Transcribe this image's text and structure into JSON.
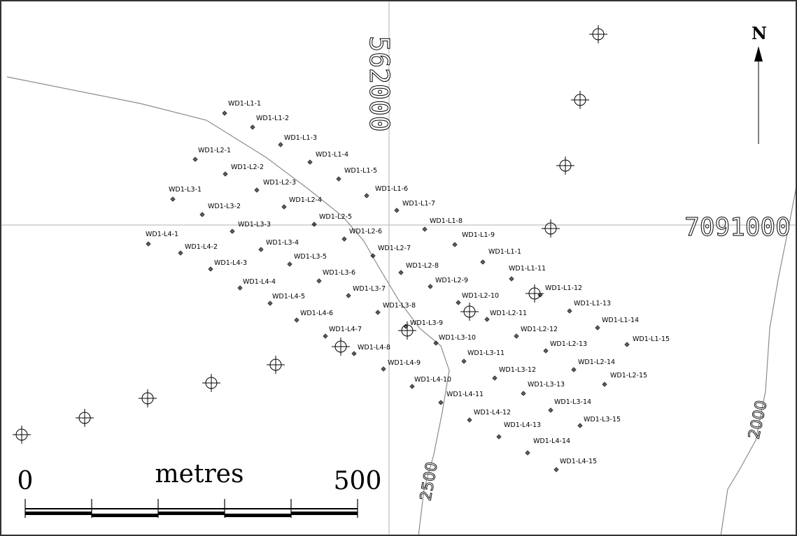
{
  "grid": {
    "easting_label": "562000",
    "northing_label": "7091000"
  },
  "contours": [
    {
      "label": "2500"
    },
    {
      "label": "2000"
    }
  ],
  "north_arrow": {
    "label": "N"
  },
  "scale_bar": {
    "start_label": "0",
    "unit_label": "metres",
    "end_label": "500"
  },
  "wells": [
    {
      "label": "WD1-L1-1"
    },
    {
      "label": "WD1-L1-2"
    },
    {
      "label": "WD1-L1-3"
    },
    {
      "label": "WD1-L1-4"
    },
    {
      "label": "WD1-L1-5"
    },
    {
      "label": "WD1-L1-6"
    },
    {
      "label": "WD1-L1-7"
    },
    {
      "label": "WD1-L1-8"
    },
    {
      "label": "WD1-L1-9"
    },
    {
      "label": "WD1-L1-1"
    },
    {
      "label": "WD1-L1-11"
    },
    {
      "label": "WD1-L1-12"
    },
    {
      "label": "WD1-L1-13"
    },
    {
      "label": "WD1-L1-14"
    },
    {
      "label": "WD1-L1-15"
    },
    {
      "label": "WD1-L2-1"
    },
    {
      "label": "WD1-L2-2"
    },
    {
      "label": "WD1-L2-3"
    },
    {
      "label": "WD1-L2-4"
    },
    {
      "label": "WD1-L2-5"
    },
    {
      "label": "WD1-L2-6"
    },
    {
      "label": "WD1-L2-7"
    },
    {
      "label": "WD1-L2-8"
    },
    {
      "label": "WD1-L2-9"
    },
    {
      "label": "WD1-L2-10"
    },
    {
      "label": "WD1-L2-11"
    },
    {
      "label": "WD1-L2-12"
    },
    {
      "label": "WD1-L2-13"
    },
    {
      "label": "WD1-L2-14"
    },
    {
      "label": "WD1-L2-15"
    },
    {
      "label": "WD1-L3-1"
    },
    {
      "label": "WD1-L3-2"
    },
    {
      "label": "WD1-L3-3"
    },
    {
      "label": "WD1-L3-4"
    },
    {
      "label": "WD1-L3-5"
    },
    {
      "label": "WD1-L3-6"
    },
    {
      "label": "WD1-L3-7"
    },
    {
      "label": "WD1-L3-8"
    },
    {
      "label": "WD1-L3-9"
    },
    {
      "label": "WD1-L3-10"
    },
    {
      "label": "WD1-L3-11"
    },
    {
      "label": "WD1-L3-12"
    },
    {
      "label": "WD1-L3-13"
    },
    {
      "label": "WD1-L3-14"
    },
    {
      "label": "WD1-L3-15"
    },
    {
      "label": "WD1-L4-1"
    },
    {
      "label": "WD1-L4-2"
    },
    {
      "label": "WD1-L4-3"
    },
    {
      "label": "WD1-L4-4"
    },
    {
      "label": "WD1-L4-5"
    },
    {
      "label": "WD1-L4-6"
    },
    {
      "label": "WD1-L4-7"
    },
    {
      "label": "WD1-L4-8"
    },
    {
      "label": "WD1-L4-9"
    },
    {
      "label": "WD1-L4-10"
    },
    {
      "label": "WD1-L4-11"
    },
    {
      "label": "WD1-L4-12"
    },
    {
      "label": "WD1-L4-13"
    },
    {
      "label": "WD1-L4-14"
    },
    {
      "label": "WD1-L4-15"
    }
  ],
  "colors": {
    "ink": "#000000",
    "frame": "#333333",
    "gridline": "#b0b0b0",
    "contour": "#8c8c8c",
    "background": "#ffffff"
  }
}
